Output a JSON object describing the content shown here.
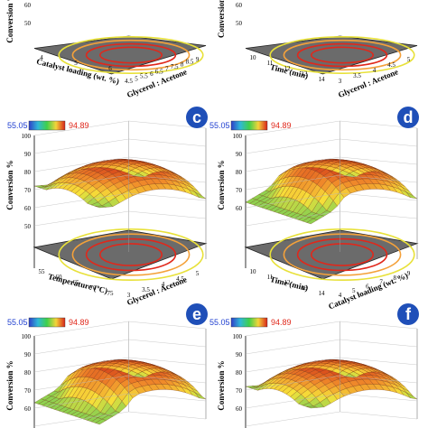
{
  "colors": {
    "surface_low": "#f7e23a",
    "surface_mid": "#f08a2a",
    "surface_high": "#cc2a14",
    "surface_green": "#8fd14f",
    "floor": "#6b6b6b",
    "contour_red": "#e0281b",
    "contour_orange": "#f4a13a",
    "contour_yellow": "#e8e13a",
    "badge": "#1f4fb8"
  },
  "colorbar": {
    "min": "55.05",
    "max": "94.89"
  },
  "panels": [
    {
      "id": "a",
      "letter": "",
      "x_axis": {
        "label": "Catalyst loading (wt. %)",
        "ticks": [
          "4",
          "5",
          "6"
        ]
      },
      "y_axis": {
        "label": "Glycerol : Acetone",
        "ticks": [
          "4.5",
          "5",
          "5.5",
          "6",
          "6.5",
          "7",
          "7.5",
          "8",
          "8.5",
          "9"
        ]
      },
      "z_axis": {
        "label": "Conversion %",
        "ticks": [
          "60",
          "50"
        ]
      }
    },
    {
      "id": "b",
      "letter": "",
      "x_axis": {
        "label": "Time (min)",
        "ticks": [
          "10",
          "11",
          "12",
          "13",
          "14"
        ]
      },
      "y_axis": {
        "label": "Glycerol : Acetone",
        "ticks": [
          "3",
          "3.5",
          "4",
          "4.5",
          "5"
        ]
      },
      "z_axis": {
        "label": "Conversion",
        "ticks": [
          "60",
          "50"
        ]
      }
    },
    {
      "id": "c",
      "letter": "c",
      "x_axis": {
        "label": "Temperature (ºC)",
        "ticks": [
          "55",
          "60",
          "65",
          "70",
          "75"
        ]
      },
      "y_axis": {
        "label": "Glycerol : Acetone",
        "ticks": [
          "3",
          "3.5",
          "4",
          "4.5",
          "5"
        ]
      },
      "z_axis": {
        "label": "Conversion %",
        "ticks": [
          "100",
          "90",
          "80",
          "70",
          "60",
          "50"
        ]
      }
    },
    {
      "id": "d",
      "letter": "d",
      "x_axis": {
        "label": "Time (min)",
        "ticks": [
          "10",
          "11",
          "12",
          "13",
          "14"
        ]
      },
      "y_axis": {
        "label": "Catalyst loading (wt. %)",
        "ticks": [
          "4",
          "5",
          "6",
          "7",
          "8",
          "9"
        ]
      },
      "z_axis": {
        "label": "Conversion %",
        "ticks": [
          "100",
          "90",
          "80",
          "70",
          "60"
        ]
      }
    },
    {
      "id": "e",
      "letter": "e",
      "x_axis": {
        "label": "",
        "ticks": []
      },
      "y_axis": {
        "label": "",
        "ticks": []
      },
      "z_axis": {
        "label": "Conversion %",
        "ticks": [
          "100",
          "90",
          "80",
          "70",
          "60"
        ]
      }
    },
    {
      "id": "f",
      "letter": "f",
      "x_axis": {
        "label": "",
        "ticks": []
      },
      "y_axis": {
        "label": "",
        "ticks": []
      },
      "z_axis": {
        "label": "Conversion %",
        "ticks": [
          "100",
          "90",
          "80",
          "70",
          "60"
        ]
      }
    }
  ],
  "chart_data": [
    {
      "type": "surface",
      "panel": "a",
      "xlabel": "Catalyst loading (wt. %)",
      "ylabel": "Glycerol : Acetone",
      "zlabel": "Conversion %",
      "colorbar_range": [
        55.05,
        94.89
      ]
    },
    {
      "type": "surface",
      "panel": "b",
      "xlabel": "Time (min)",
      "ylabel": "Glycerol : Acetone",
      "zlabel": "Conversion",
      "colorbar_range": [
        55.05,
        94.89
      ]
    },
    {
      "type": "surface",
      "panel": "c",
      "xlabel": "Temperature (ºC)",
      "ylabel": "Glycerol : Acetone",
      "zlabel": "Conversion %",
      "x_range": [
        55,
        75
      ],
      "y_range": [
        3,
        5
      ],
      "zlim": [
        50,
        100
      ],
      "colorbar_range": [
        55.05,
        94.89
      ]
    },
    {
      "type": "surface",
      "panel": "d",
      "xlabel": "Time (min)",
      "ylabel": "Catalyst loading (wt. %)",
      "zlabel": "Conversion %",
      "x_range": [
        10,
        14
      ],
      "y_range": [
        4,
        9
      ],
      "zlim": [
        60,
        100
      ],
      "colorbar_range": [
        55.05,
        94.89
      ]
    },
    {
      "type": "surface",
      "panel": "e",
      "zlabel": "Conversion %",
      "zlim": [
        60,
        100
      ],
      "colorbar_range": [
        55.05,
        94.89
      ]
    },
    {
      "type": "surface",
      "panel": "f",
      "zlabel": "Conversion %",
      "zlim": [
        60,
        100
      ],
      "colorbar_range": [
        55.05,
        94.89
      ]
    }
  ]
}
